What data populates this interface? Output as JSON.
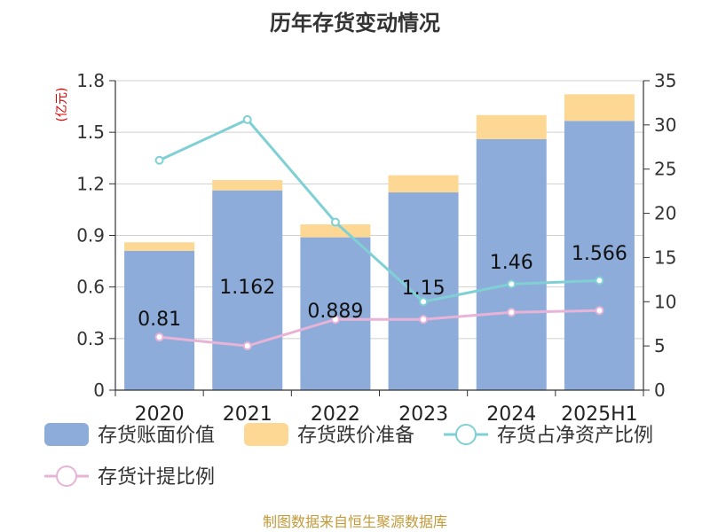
{
  "chart_data": {
    "type": "bar",
    "title": "历年存货变动情况",
    "categories": [
      "2020",
      "2021",
      "2022",
      "2023",
      "2024",
      "2025H1"
    ],
    "y_left": {
      "unit": "(亿元)",
      "ylim": [
        0,
        1.8
      ],
      "ticks": [
        "0",
        "0.3",
        "0.6",
        "0.9",
        "1.2",
        "1.5",
        "1.8"
      ]
    },
    "y_right": {
      "unit": "%",
      "ylim": [
        0,
        35
      ],
      "ticks": [
        "0",
        "5",
        "10",
        "15",
        "20",
        "25",
        "30",
        "35"
      ]
    },
    "series": [
      {
        "name": "存货账面价值",
        "kind": "bar",
        "axis": "left",
        "color": "#8eacda",
        "values": [
          0.81,
          1.162,
          0.889,
          1.15,
          1.46,
          1.566
        ],
        "labels": [
          "0.81",
          "1.162",
          "0.889",
          "1.15",
          "1.46",
          "1.566"
        ]
      },
      {
        "name": "存货跌价准备",
        "kind": "bar-stack",
        "axis": "left",
        "color": "#fcd894",
        "values": [
          0.05,
          0.06,
          0.075,
          0.1,
          0.14,
          0.155
        ]
      },
      {
        "name": "存货占净资产比例",
        "kind": "line",
        "axis": "right",
        "color": "#7fd0d4",
        "values": [
          26.0,
          30.6,
          19.0,
          10.0,
          12.0,
          12.4
        ]
      },
      {
        "name": "存货计提比例",
        "kind": "line",
        "axis": "right",
        "color": "#e7b3d6",
        "values": [
          6.0,
          5.0,
          8.0,
          8.0,
          8.8,
          9.0
        ]
      }
    ],
    "grid": true,
    "legend_position": "bottom"
  },
  "footer": {
    "source": "制图数据来自恒生聚源数据库"
  }
}
